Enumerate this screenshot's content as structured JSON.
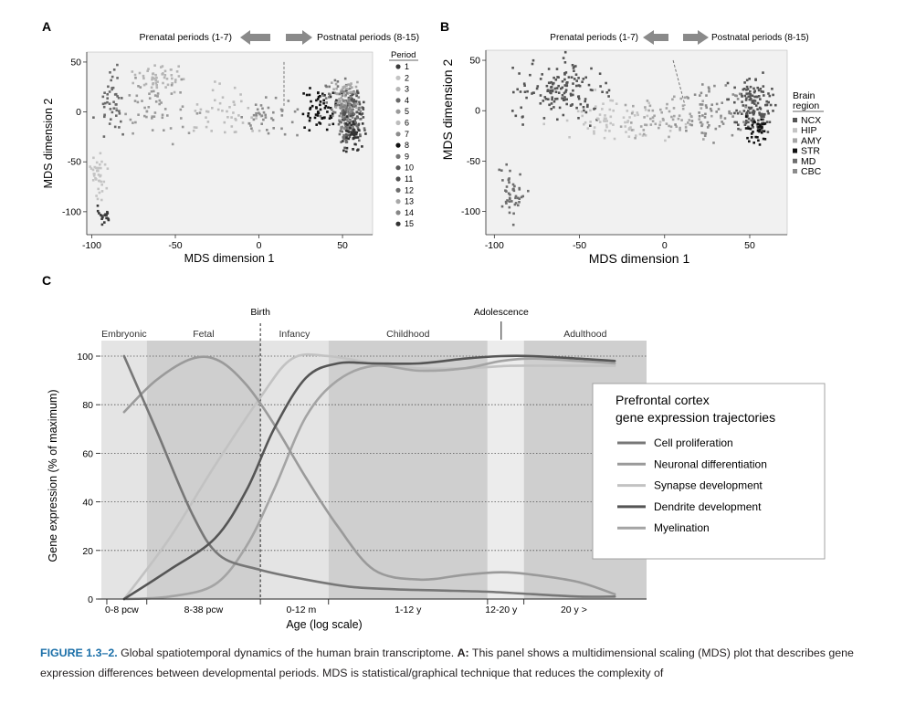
{
  "figure": {
    "panel_a_label": "A",
    "panel_b_label": "B",
    "panel_c_label": "C",
    "caption_label": "FIGURE 1.3–2.",
    "caption_text_1": " Global spatiotemporal dynamics of the human brain transcriptome. ",
    "caption_bold": "A:",
    "caption_text_2": " This panel shows a multidimensional scaling (MDS) plot that describes gene expression differences between developmental periods. MDS is statistical/graphical technique that reduces the complexity of"
  },
  "chart_data": [
    {
      "id": "A",
      "type": "scatter",
      "xlabel": "MDS dimension 1",
      "ylabel": "MDS dimension 2",
      "xlim": [
        -103,
        68
      ],
      "ylim": [
        -123,
        60
      ],
      "xticks": [
        -100,
        -50,
        0,
        50
      ],
      "yticks": [
        -100,
        -50,
        0,
        50
      ],
      "arrow_left_label": "Prenatal periods (1-7)",
      "arrow_right_label": "Postnatal periods (8-15)",
      "divider": [
        [
          15,
          50
        ],
        [
          15,
          5
        ]
      ],
      "legend_title": "Period",
      "legend_position": "right",
      "legend": [
        "1",
        "2",
        "3",
        "4",
        "5",
        "6",
        "7",
        "8",
        "9",
        "10",
        "11",
        "12",
        "13",
        "14",
        "15"
      ],
      "legend_colors": [
        "#3a3a3a",
        "#c4c4c4",
        "#b5b5b5",
        "#6a6a6a",
        "#9a9a9a",
        "#bdbdbd",
        "#8c8c8c",
        "#111111",
        "#777777",
        "#5a5a5a",
        "#505050",
        "#6e6e6e",
        "#a8a8a8",
        "#868686",
        "#333333"
      ],
      "clusters": [
        {
          "period": 1,
          "cx": -93,
          "cy": -105,
          "sx": 4,
          "sy": 8,
          "n": 18
        },
        {
          "period": 2,
          "cx": -96,
          "cy": -65,
          "sx": 4,
          "sy": 18,
          "n": 38
        },
        {
          "period": 3,
          "cx": -60,
          "cy": 35,
          "sx": 12,
          "sy": 10,
          "n": 50
        },
        {
          "period": 4,
          "cx": -88,
          "cy": 10,
          "sx": 7,
          "sy": 25,
          "n": 45
        },
        {
          "period": 5,
          "cx": -58,
          "cy": 0,
          "sx": 18,
          "sy": 22,
          "n": 55
        },
        {
          "period": 6,
          "cx": -20,
          "cy": 0,
          "sx": 20,
          "sy": 22,
          "n": 48
        },
        {
          "period": 7,
          "cx": 5,
          "cy": -5,
          "sx": 14,
          "sy": 15,
          "n": 40
        },
        {
          "period": 8,
          "cx": 35,
          "cy": 0,
          "sx": 10,
          "sy": 20,
          "n": 60
        },
        {
          "period": 9,
          "cx": 48,
          "cy": 10,
          "sx": 8,
          "sy": 20,
          "n": 40
        },
        {
          "period": 10,
          "cx": 55,
          "cy": -5,
          "sx": 6,
          "sy": 22,
          "n": 55
        },
        {
          "period": 11,
          "cx": 56,
          "cy": 5,
          "sx": 5,
          "sy": 18,
          "n": 50
        },
        {
          "period": 12,
          "cx": 55,
          "cy": -15,
          "sx": 6,
          "sy": 20,
          "n": 50
        },
        {
          "period": 13,
          "cx": 52,
          "cy": 15,
          "sx": 7,
          "sy": 15,
          "n": 50
        },
        {
          "period": 14,
          "cx": 54,
          "cy": 0,
          "sx": 6,
          "sy": 20,
          "n": 50
        },
        {
          "period": 15,
          "cx": 56,
          "cy": -20,
          "sx": 5,
          "sy": 18,
          "n": 45
        }
      ]
    },
    {
      "id": "B",
      "type": "scatter",
      "xlabel": "MDS dimension 1",
      "ylabel": "MDS dimension 2",
      "xlim": [
        -105,
        72
      ],
      "ylim": [
        -123,
        60
      ],
      "xticks": [
        -100,
        -50,
        0,
        50
      ],
      "yticks": [
        -100,
        -50,
        0,
        50
      ],
      "arrow_left_label": "Prenatal periods (1-7)",
      "arrow_right_label": "Postnatal periods (8-15)",
      "divider": [
        [
          5,
          50
        ],
        [
          12,
          5
        ]
      ],
      "legend_title": "Brain region",
      "legend_position": "right",
      "legend": [
        "NCX",
        "HIP",
        "AMY",
        "STR",
        "MD",
        "CBC"
      ],
      "legend_colors": [
        "#555555",
        "#c4c4c4",
        "#a5a5a5",
        "#111111",
        "#6e6e6e",
        "#8c8c8c"
      ],
      "clusters": [
        {
          "region": 0,
          "cx": -60,
          "cy": 20,
          "sx": 22,
          "sy": 22,
          "n": 150
        },
        {
          "region": 0,
          "cx": 52,
          "cy": 5,
          "sx": 10,
          "sy": 22,
          "n": 140
        },
        {
          "region": 1,
          "cx": -30,
          "cy": -10,
          "sx": 25,
          "sy": 18,
          "n": 70
        },
        {
          "region": 2,
          "cx": 0,
          "cy": -5,
          "sx": 25,
          "sy": 18,
          "n": 70
        },
        {
          "region": 3,
          "cx": 55,
          "cy": -20,
          "sx": 6,
          "sy": 12,
          "n": 35
        },
        {
          "region": 4,
          "cx": -90,
          "cy": -80,
          "sx": 6,
          "sy": 22,
          "n": 45
        },
        {
          "region": 5,
          "cx": 30,
          "cy": 0,
          "sx": 18,
          "sy": 25,
          "n": 60
        }
      ]
    },
    {
      "id": "C",
      "type": "line",
      "xlabel": "Age (log scale)",
      "ylabel": "Gene expression (% of maximum)",
      "xlim": [
        0,
        12
      ],
      "ylim": [
        0,
        100
      ],
      "yticks": [
        0,
        20,
        40,
        60,
        80,
        100
      ],
      "age_ticks": [
        {
          "label": "0-8 pcw",
          "x": 0.45
        },
        {
          "label": "8-38 pcw",
          "x": 2.25
        },
        {
          "label": "0-12 m",
          "x": 4.4
        },
        {
          "label": "1-12 y",
          "x": 6.75
        },
        {
          "label": "12-20 y",
          "x": 8.8
        },
        {
          "label": "20 y >",
          "x": 10.4
        }
      ],
      "age_boundaries": [
        0,
        1,
        3.5,
        5,
        8.5,
        9.3,
        12
      ],
      "stages": [
        {
          "label": "Embryonic",
          "from": 0,
          "to": 1,
          "shade": "#e4e4e4"
        },
        {
          "label": "Fetal",
          "from": 1,
          "to": 3.5,
          "shade": "#cfcfcf"
        },
        {
          "label": "Infancy",
          "from": 3.5,
          "to": 5,
          "shade": "#e4e4e4"
        },
        {
          "label": "Childhood",
          "from": 5,
          "to": 8.5,
          "shade": "#cfcfcf"
        },
        {
          "label": "",
          "from": 8.5,
          "to": 9.3,
          "shade": "#ececec"
        },
        {
          "label": "Adulthood",
          "from": 9.3,
          "to": 12,
          "shade": "#cfcfcf"
        }
      ],
      "birth_label": "Birth",
      "birth_x": 3.5,
      "adolescence_label": "Adolescence",
      "adolescence_x": 8.8,
      "legend_title_1": "Prefrontal cortex",
      "legend_title_2": "gene expression trajectories",
      "legend_position": "right",
      "series": [
        {
          "name": "Cell proliferation",
          "color": "#777777",
          "x": [
            0.5,
            1.2,
            2.0,
            2.6,
            3.5,
            4.5,
            5.5,
            6.5,
            7.5,
            8.5,
            9.5,
            10.5,
            11.3
          ],
          "y": [
            100,
            70,
            35,
            18,
            12,
            8,
            5,
            4,
            3.5,
            3,
            2,
            1,
            1
          ]
        },
        {
          "name": "Neuronal differentiation",
          "color": "#9a9a9a",
          "x": [
            0.5,
            1.2,
            2.0,
            2.6,
            3.2,
            3.8,
            4.5,
            5.2,
            6.0,
            7.0,
            8.0,
            8.8,
            9.5,
            10.5,
            11.3
          ],
          "y": [
            77,
            90,
            99,
            98,
            88,
            72,
            50,
            30,
            12,
            8,
            10,
            11,
            10,
            7,
            2
          ]
        },
        {
          "name": "Synapse development",
          "color": "#c2c2c2",
          "x": [
            0.5,
            1.5,
            2.5,
            3.5,
            4.2,
            5.0,
            6.0,
            7.0,
            8.0,
            9.0,
            10.0,
            11.3
          ],
          "y": [
            0,
            25,
            55,
            83,
            99,
            100,
            97,
            95,
            95,
            96,
            96,
            96
          ]
        },
        {
          "name": "Dendrite development",
          "color": "#555555",
          "x": [
            0.5,
            1.5,
            2.5,
            3.2,
            3.8,
            4.5,
            5.2,
            6.0,
            7.0,
            8.0,
            8.8,
            9.5,
            10.5,
            11.3
          ],
          "y": [
            0,
            12,
            25,
            45,
            70,
            91,
            97,
            97,
            97,
            99,
            100,
            100,
            99,
            98
          ]
        },
        {
          "name": "Myelination",
          "color": "#a4a4a4",
          "x": [
            0.5,
            1.5,
            2.5,
            3.2,
            3.8,
            4.5,
            5.2,
            6.0,
            7.0,
            8.0,
            8.8,
            9.5,
            10.5,
            11.3
          ],
          "y": [
            0,
            1,
            6,
            22,
            45,
            75,
            90,
            96,
            94,
            95,
            98,
            99,
            98,
            97
          ]
        }
      ]
    }
  ]
}
